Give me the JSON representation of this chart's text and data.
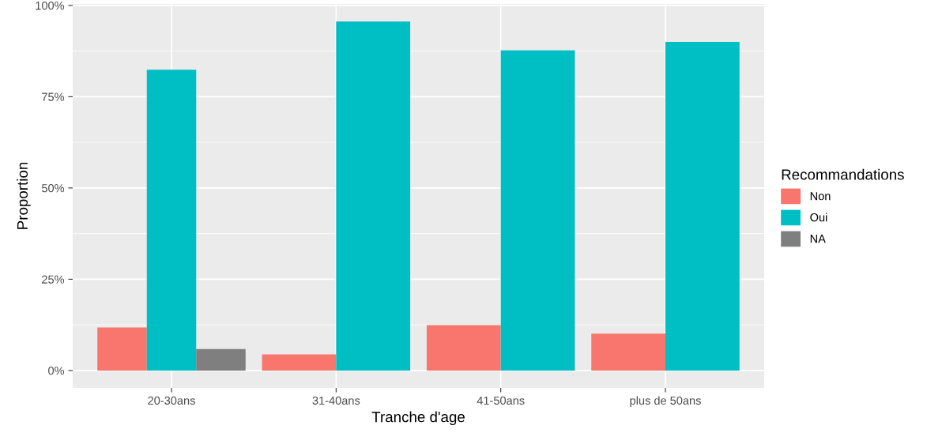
{
  "chart_data": {
    "type": "bar",
    "xlabel": "Tranche d'age",
    "ylabel": "Proportion",
    "legend_title": "Recommandations",
    "categories": [
      "20-30ans",
      "31-40ans",
      "41-50ans",
      "plus de 50ans"
    ],
    "series": [
      {
        "name": "Non",
        "color": "#f8766d",
        "values": [
          11.8,
          4.4,
          12.4,
          10.1
        ]
      },
      {
        "name": "Oui",
        "color": "#00bfc4",
        "values": [
          82.4,
          95.6,
          87.7,
          90.0
        ]
      },
      {
        "name": "NA",
        "color": "#7f7f7f",
        "values": [
          5.9,
          null,
          null,
          null
        ]
      }
    ],
    "ylim": [
      -4.78,
      100.4
    ],
    "yticks": [
      {
        "value": 0,
        "label": "0%"
      },
      {
        "value": 25,
        "label": "25%"
      },
      {
        "value": 50,
        "label": "50%"
      },
      {
        "value": 75,
        "label": "75%"
      },
      {
        "value": 100,
        "label": "100%"
      }
    ],
    "grid": true,
    "legend": "right"
  }
}
